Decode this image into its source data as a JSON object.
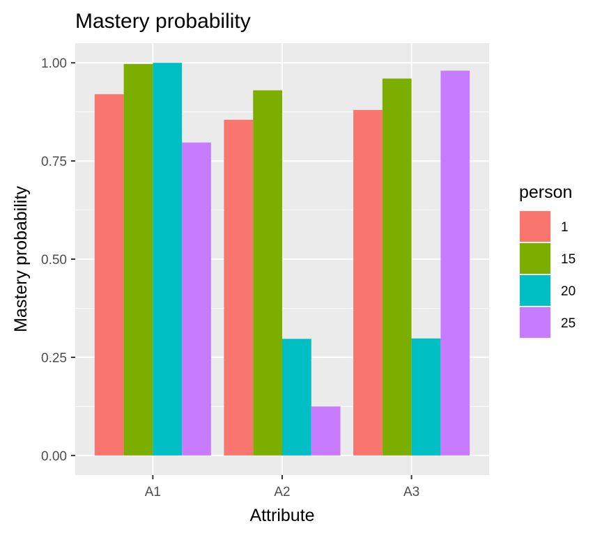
{
  "chart_data": {
    "type": "bar",
    "title": "Mastery probability",
    "xlabel": "Attribute",
    "ylabel": "Mastery probability",
    "categories": [
      "A1",
      "A2",
      "A3"
    ],
    "ylim": [
      -0.05,
      1.05
    ],
    "yticks": [
      0.0,
      0.25,
      0.5,
      0.75,
      1.0
    ],
    "ytick_labels": [
      "0.00",
      "0.25",
      "0.50",
      "0.75",
      "1.00"
    ],
    "grid": true,
    "legend": {
      "title": "person",
      "position": "right"
    },
    "series": [
      {
        "name": "1",
        "color": "#F8766D",
        "values": [
          0.92,
          0.855,
          0.88
        ]
      },
      {
        "name": "15",
        "color": "#7CAE00",
        "values": [
          0.997,
          0.93,
          0.96
        ]
      },
      {
        "name": "20",
        "color": "#00BFC4",
        "values": [
          1.0,
          0.297,
          0.298
        ]
      },
      {
        "name": "25",
        "color": "#C77CFF",
        "values": [
          0.797,
          0.125,
          0.98
        ]
      }
    ]
  },
  "colors": {
    "panel_background": "#EBEBEB",
    "grid_major": "#FFFFFF",
    "tick_text": "#4D4D4D"
  }
}
